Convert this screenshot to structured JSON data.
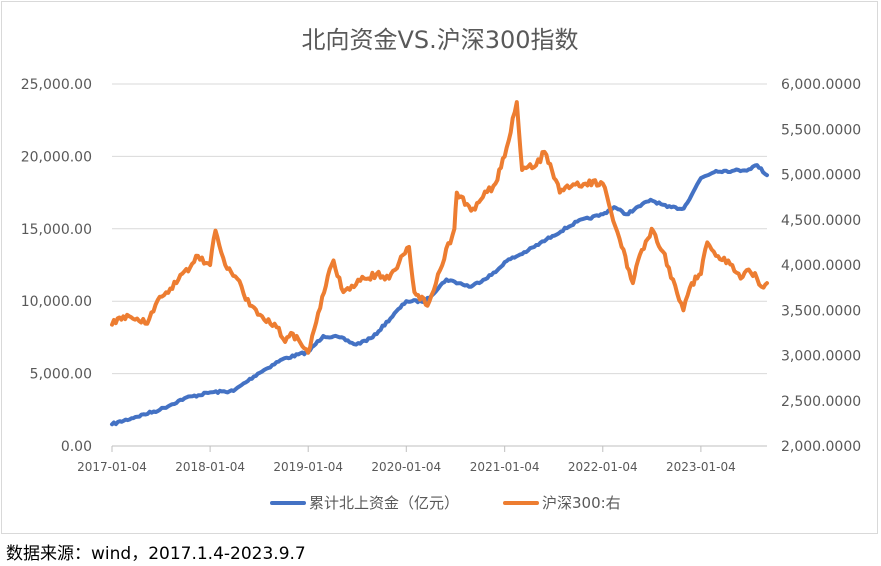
{
  "chart_data": {
    "type": "line",
    "title": "北向资金VS.沪深300指数",
    "x_ticks": [
      "2017-01-04",
      "2018-01-04",
      "2019-01-04",
      "2020-01-04",
      "2021-01-04",
      "2022-01-04",
      "2023-01-04"
    ],
    "xlim": [
      "2017-01-04",
      "2023-09-07"
    ],
    "y_left": {
      "ylim": [
        0,
        25000
      ],
      "ticks": [
        0,
        5000,
        10000,
        15000,
        20000,
        25000
      ],
      "tick_labels": [
        "0.00",
        "5,000.00",
        "10,000.00",
        "15,000.00",
        "20,000.00",
        "25,000.00"
      ]
    },
    "y_right": {
      "ylim": [
        2000,
        6000
      ],
      "ticks": [
        2000,
        2500,
        3000,
        3500,
        4000,
        4500,
        5000,
        5500,
        6000
      ],
      "tick_labels": [
        "2,000.0000",
        "2,500.0000",
        "3,000.0000",
        "3,500.0000",
        "4,000.0000",
        "4,500.0000",
        "5,000.0000",
        "5,500.0000",
        "6,000.0000"
      ]
    },
    "grid": "horizontal",
    "legend_position": "bottom",
    "series": [
      {
        "name": "累计北上资金（亿元）",
        "axis": "left",
        "color": "#4472c4",
        "x": [
          "2017-01-04",
          "2017-04-01",
          "2017-07-01",
          "2017-10-01",
          "2018-01-04",
          "2018-04-01",
          "2018-07-01",
          "2018-10-01",
          "2019-01-04",
          "2019-03-01",
          "2019-05-01",
          "2019-07-01",
          "2019-09-01",
          "2020-01-04",
          "2020-03-15",
          "2020-06-01",
          "2020-09-01",
          "2020-12-01",
          "2021-01-04",
          "2021-04-01",
          "2021-07-01",
          "2021-10-01",
          "2022-01-04",
          "2022-02-15",
          "2022-04-01",
          "2022-07-01",
          "2022-09-01",
          "2022-11-01",
          "2023-01-04",
          "2023-03-01",
          "2023-05-01",
          "2023-07-01",
          "2023-08-01",
          "2023-09-07"
        ],
        "values": [
          1500,
          2000,
          2500,
          3300,
          3700,
          3800,
          5000,
          6000,
          6500,
          7600,
          7500,
          7000,
          7500,
          10000,
          10000,
          11500,
          11000,
          12000,
          12700,
          13500,
          14500,
          15500,
          16000,
          16500,
          16000,
          17000,
          16500,
          16400,
          18500,
          19000,
          19000,
          19100,
          19400,
          18700
        ]
      },
      {
        "name": "沪深300:右",
        "axis": "right",
        "color": "#ed7d31",
        "x": [
          "2017-01-04",
          "2017-03-01",
          "2017-05-15",
          "2017-07-01",
          "2017-09-01",
          "2017-11-20",
          "2018-01-04",
          "2018-01-24",
          "2018-03-01",
          "2018-04-15",
          "2018-06-01",
          "2018-07-01",
          "2018-09-01",
          "2018-10-10",
          "2018-11-01",
          "2019-01-04",
          "2019-02-25",
          "2019-04-08",
          "2019-05-15",
          "2019-08-01",
          "2019-09-15",
          "2019-11-01",
          "2020-01-14",
          "2020-02-03",
          "2020-03-23",
          "2020-05-01",
          "2020-07-01",
          "2020-07-10",
          "2020-09-01",
          "2020-10-15",
          "2020-12-01",
          "2021-01-04",
          "2021-02-18",
          "2021-03-10",
          "2021-05-01",
          "2021-06-01",
          "2021-07-28",
          "2021-09-01",
          "2021-11-01",
          "2022-01-04",
          "2022-03-15",
          "2022-04-26",
          "2022-05-15",
          "2022-07-05",
          "2022-08-15",
          "2022-10-31",
          "2022-12-01",
          "2023-01-04",
          "2023-01-28",
          "2023-03-01",
          "2023-05-01",
          "2023-06-01",
          "2023-07-01",
          "2023-08-01",
          "2023-08-25",
          "2023-09-07"
        ],
        "values": [
          3340,
          3450,
          3350,
          3650,
          3800,
          4100,
          4000,
          4380,
          4000,
          3850,
          3550,
          3450,
          3350,
          3150,
          3250,
          3030,
          3650,
          4050,
          3700,
          3850,
          3900,
          3850,
          4200,
          3700,
          3550,
          3900,
          4400,
          4800,
          4600,
          4750,
          4900,
          5200,
          5800,
          5050,
          5100,
          5250,
          4800,
          4850,
          4900,
          4900,
          4200,
          3800,
          4050,
          4400,
          4150,
          3500,
          3800,
          3900,
          4250,
          4100,
          4000,
          3850,
          3950,
          3850,
          3750,
          3800
        ]
      }
    ]
  },
  "source_note": "数据来源：wind，2017.1.4-2023.9.7"
}
